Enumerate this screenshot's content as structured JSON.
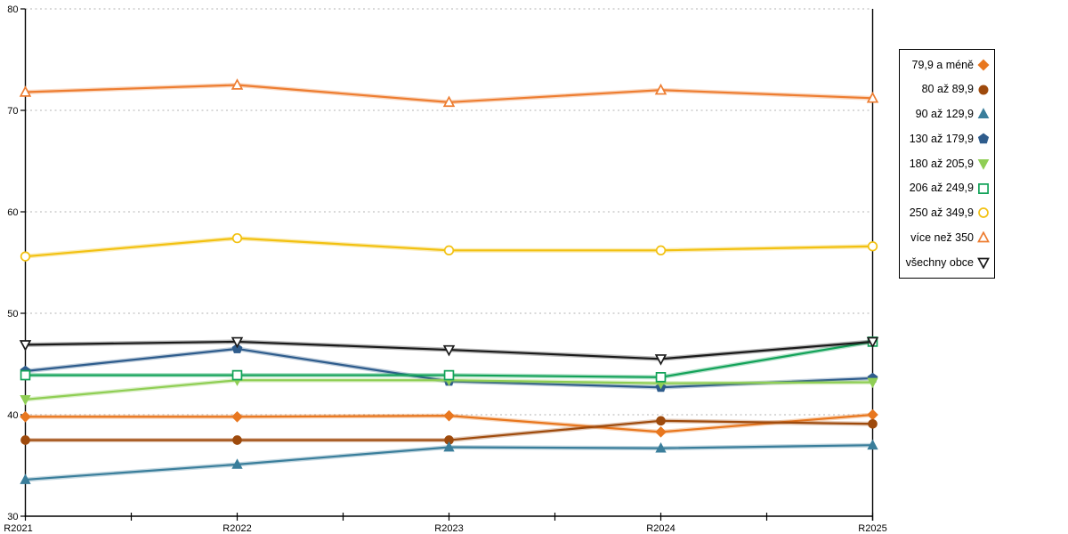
{
  "chart_data": {
    "type": "line",
    "title": "",
    "xlabel": "",
    "ylabel": "",
    "categories": [
      "R2021",
      "R2022",
      "R2023",
      "R2024",
      "R2025"
    ],
    "series": [
      {
        "name": "79,9 a méně",
        "color": "#E8771F",
        "marker": "diamond",
        "marker_filled": true,
        "values": [
          39.8,
          39.8,
          39.9,
          38.3,
          40.0
        ]
      },
      {
        "name": "80 až 89,9",
        "color": "#9E4A0C",
        "marker": "circle",
        "marker_filled": true,
        "values": [
          37.5,
          37.5,
          37.5,
          39.4,
          39.1
        ]
      },
      {
        "name": "90 až 129,9",
        "color": "#3A7E9B",
        "marker": "triangle-up",
        "marker_filled": true,
        "values": [
          33.6,
          35.1,
          36.8,
          36.7,
          37.0
        ]
      },
      {
        "name": "130 až 179,9",
        "color": "#2E5C8C",
        "marker": "pentagon",
        "marker_filled": true,
        "values": [
          44.3,
          46.5,
          43.3,
          42.7,
          43.6
        ]
      },
      {
        "name": "180 až 205,9",
        "color": "#8FCE54",
        "marker": "triangle-down",
        "marker_filled": true,
        "values": [
          41.5,
          43.4,
          43.4,
          43.1,
          43.2
        ]
      },
      {
        "name": "206 až 249,9",
        "color": "#12A258",
        "marker": "square",
        "marker_filled": false,
        "values": [
          43.9,
          43.9,
          43.9,
          43.7,
          47.2
        ]
      },
      {
        "name": "250 až 349,9",
        "color": "#F2C111",
        "marker": "circle",
        "marker_filled": false,
        "values": [
          55.6,
          57.4,
          56.2,
          56.2,
          56.6
        ]
      },
      {
        "name": "více než 350",
        "color": "#ED7D31",
        "marker": "triangle-up",
        "marker_filled": false,
        "values": [
          71.8,
          72.5,
          70.8,
          72.0,
          71.2
        ]
      },
      {
        "name": "všechny obce",
        "color": "#1A1A1A",
        "marker": "triangle-down",
        "marker_filled": false,
        "values": [
          46.9,
          47.2,
          46.4,
          45.5,
          47.2
        ]
      }
    ],
    "ylim": [
      30,
      80
    ],
    "yticks": [
      30,
      40,
      50,
      60,
      70,
      80
    ],
    "grid": {
      "horizontal": true,
      "style": "dotted",
      "color": "#b3b3b3"
    },
    "minor_x_ticks_between_categories": true,
    "legend_position": "right",
    "axis_color": "#000000"
  }
}
